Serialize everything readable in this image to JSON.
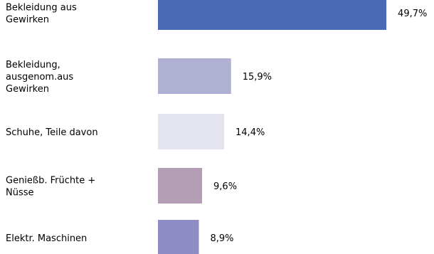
{
  "chart_data": {
    "type": "bar",
    "orientation": "horizontal",
    "title": "",
    "xlabel": "",
    "ylabel": "",
    "unit": "%",
    "grid": false,
    "legend": "none",
    "categories": [
      "Bekleidung aus Gewirken",
      "Bekleidung, ausgenom.aus Gewirken",
      "Schuhe, Teile davon",
      "Genießb. Früchte + Nüsse",
      "Elektr. Maschinen"
    ],
    "values": [
      49.7,
      15.9,
      14.4,
      9.6,
      8.9
    ],
    "value_labels": [
      "49,7%",
      "15,9%",
      "14,4%",
      "9,6%",
      "8,9%"
    ],
    "colors": [
      "#4a6ab5",
      "#b0b0d2",
      "#e4e4ee",
      "#b39eb5",
      "#8f8dc6"
    ],
    "xlim": [
      0,
      50
    ]
  }
}
